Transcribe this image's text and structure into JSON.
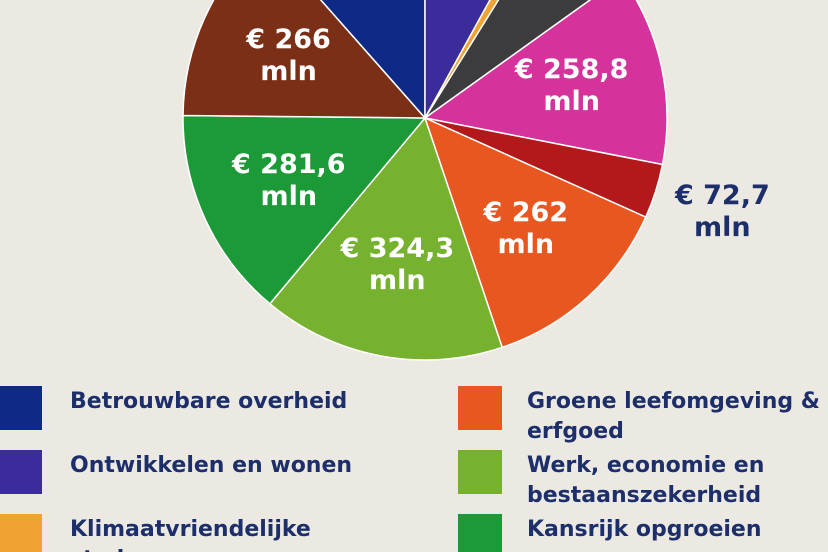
{
  "chart_data": {
    "type": "pie",
    "categories": [
      "Betrouwbare overheid",
      "Ontwikkelen en wonen",
      "Klimaatvriendelijke stad",
      null,
      null,
      null,
      "Groene leefomgeving & erfgoed",
      "Werk, economie en bestaanszekerheid",
      "Kansrijk opgroeien",
      null
    ],
    "values": [
      230,
      160,
      17,
      125,
      258.8,
      72.7,
      262,
      324.3,
      281.6,
      266
    ],
    "value_labels": [
      null,
      null,
      null,
      null,
      "€ 258,8 mln",
      "€ 72,7 mln",
      "€ 262 mln",
      "€ 324,3 mln",
      "€ 281,6 mln",
      "€ 266 mln"
    ],
    "colors": [
      "#0f2a86",
      "#3b2c9c",
      "#f0a233",
      "#3c3c3e",
      "#d5329b",
      "#b3191b",
      "#e8571f",
      "#76b22f",
      "#1c9a37",
      "#7b2f17"
    ]
  }
}
